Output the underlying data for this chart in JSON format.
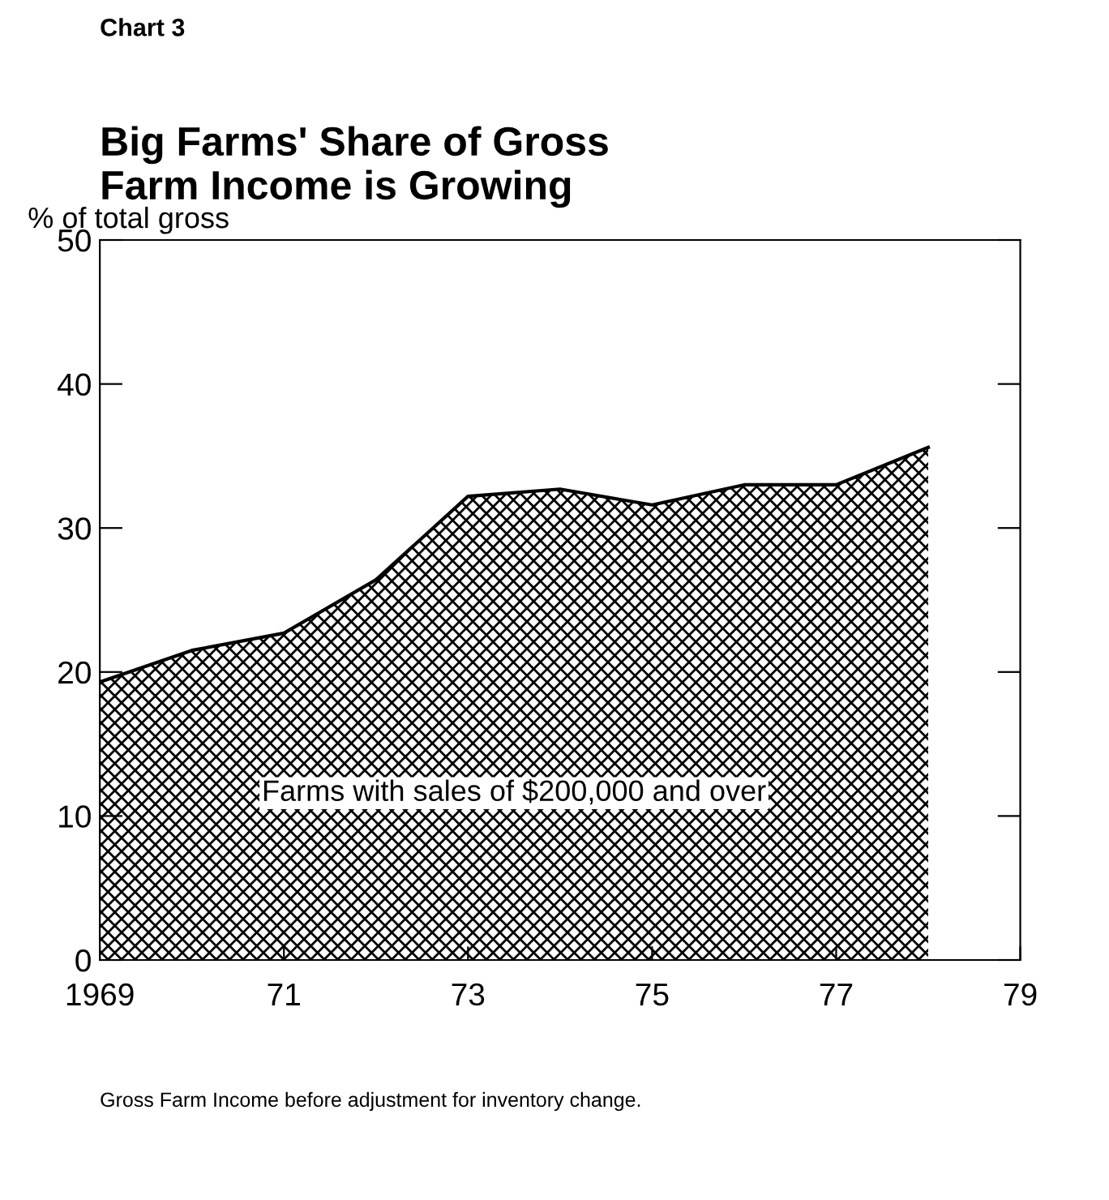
{
  "chart_data": {
    "type": "area",
    "title": "Big Farms' Share of Gross\nFarm Income is Growing",
    "ylabel": "% of total gross",
    "annotations": [
      "Chart 3",
      "Gross Farm Income before adjustment for inventory change."
    ],
    "x": [
      1969,
      1970,
      1971,
      1972,
      1973,
      1974,
      1975,
      1976,
      1977,
      1978
    ],
    "series": [
      {
        "name": "Farms with sales of $200,000 and over",
        "color": "#000000",
        "values": [
          19.3,
          21.5,
          22.7,
          26.4,
          32.2,
          32.7,
          31.6,
          33,
          33,
          35.6
        ]
      }
    ],
    "xlim": [
      1969,
      1979
    ],
    "xticks": [
      {
        "value": 1969,
        "label": "1969"
      },
      {
        "value": 1971,
        "label": "71"
      },
      {
        "value": 1973,
        "label": "73"
      },
      {
        "value": 1975,
        "label": "75"
      },
      {
        "value": 1977,
        "label": "77"
      },
      {
        "value": 1979,
        "label": "79"
      }
    ],
    "ylim": [
      0,
      50
    ],
    "yticks": [
      0,
      10,
      20,
      30,
      40,
      50
    ],
    "grid": false,
    "legend": false
  }
}
